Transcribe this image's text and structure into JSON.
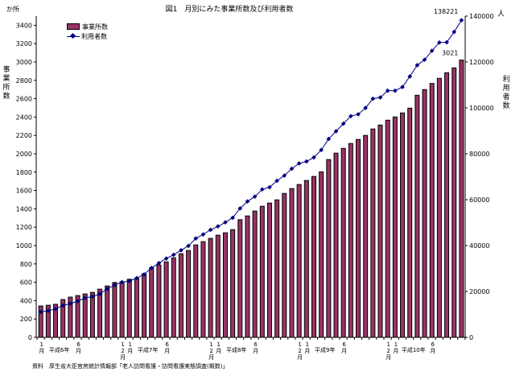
{
  "chart_data": {
    "type": "bar+line",
    "title": "図1　月別にみた事業所数及び利用者数",
    "y_left_unit": "か所",
    "y_left_label": "事業所数",
    "y_right_unit": "人",
    "y_right_label": "利用者数",
    "ylim_left": [
      0,
      3500
    ],
    "ylim_right": [
      0,
      140000
    ],
    "yticks_left": [
      0,
      200,
      400,
      600,
      800,
      1000,
      1200,
      1400,
      1600,
      1800,
      2000,
      2200,
      2400,
      2600,
      2800,
      3000,
      3200,
      3400
    ],
    "yticks_right": [
      0,
      20000,
      40000,
      60000,
      80000,
      100000,
      120000,
      140000
    ],
    "x_period": "1994-01 to 1998-10 (monthly)",
    "x_labels": [
      {
        "month_index": 0,
        "text": "1月"
      },
      {
        "month_index": 5,
        "text": "6月"
      },
      {
        "month_index": 11,
        "text": "12月"
      },
      {
        "month_index": 12,
        "text": "1月"
      },
      {
        "month_index": 17,
        "text": "6月"
      },
      {
        "month_index": 23,
        "text": "12月"
      },
      {
        "month_index": 24,
        "text": "1月"
      },
      {
        "month_index": 29,
        "text": "6月"
      },
      {
        "month_index": 35,
        "text": "12月"
      },
      {
        "month_index": 36,
        "text": "1月"
      },
      {
        "month_index": 41,
        "text": "6月"
      },
      {
        "month_index": 47,
        "text": "12月"
      },
      {
        "month_index": 48,
        "text": "1月"
      },
      {
        "month_index": 53,
        "text": "6月"
      }
    ],
    "year_labels": [
      {
        "month_index": 2.5,
        "text": "平成6年"
      },
      {
        "month_index": 14.5,
        "text": "平成7年"
      },
      {
        "month_index": 26.5,
        "text": "平成8年"
      },
      {
        "month_index": 38.5,
        "text": "平成9年"
      },
      {
        "month_index": 50.5,
        "text": "平成10年"
      }
    ],
    "series": [
      {
        "name": "事業所数",
        "type": "bar",
        "axis": "left",
        "color": "#993366",
        "values": [
          342,
          350,
          360,
          412,
          438,
          455,
          473,
          490,
          525,
          560,
          598,
          605,
          633,
          640,
          692,
          756,
          788,
          823,
          867,
          911,
          946,
          1007,
          1043,
          1078,
          1113,
          1139,
          1174,
          1282,
          1323,
          1376,
          1428,
          1463,
          1498,
          1568,
          1621,
          1665,
          1709,
          1753,
          1803,
          1937,
          2007,
          2059,
          2112,
          2156,
          2200,
          2270,
          2313,
          2366,
          2401,
          2445,
          2497,
          2638,
          2699,
          2766,
          2822,
          2883,
          2936,
          3021
        ]
      },
      {
        "name": "利用者数",
        "type": "line",
        "axis": "right",
        "color": "#000080",
        "values": [
          11100,
          11560,
          12380,
          13900,
          14700,
          15770,
          17150,
          17770,
          18900,
          21100,
          22780,
          24070,
          24530,
          25830,
          27450,
          30250,
          32350,
          34350,
          36000,
          37960,
          39850,
          43110,
          44860,
          46860,
          48370,
          50120,
          52120,
          56190,
          59240,
          61340,
          64490,
          65430,
          68240,
          70500,
          73500,
          75800,
          76650,
          78400,
          81670,
          86470,
          89830,
          93120,
          96390,
          97200,
          100000,
          104000,
          104550,
          107500,
          107500,
          109100,
          113700,
          118600,
          121000,
          124900,
          128500,
          128600,
          133100,
          138221
        ]
      }
    ],
    "annotations": [
      {
        "series": "利用者数",
        "text": "138221"
      },
      {
        "series": "事業所数",
        "text": "3021"
      }
    ],
    "legend": "top-left",
    "grid": false
  },
  "source": "資料　厚生省大臣官房統計情報部「老人訪問看護・訪問看護実態調査(概数)」"
}
